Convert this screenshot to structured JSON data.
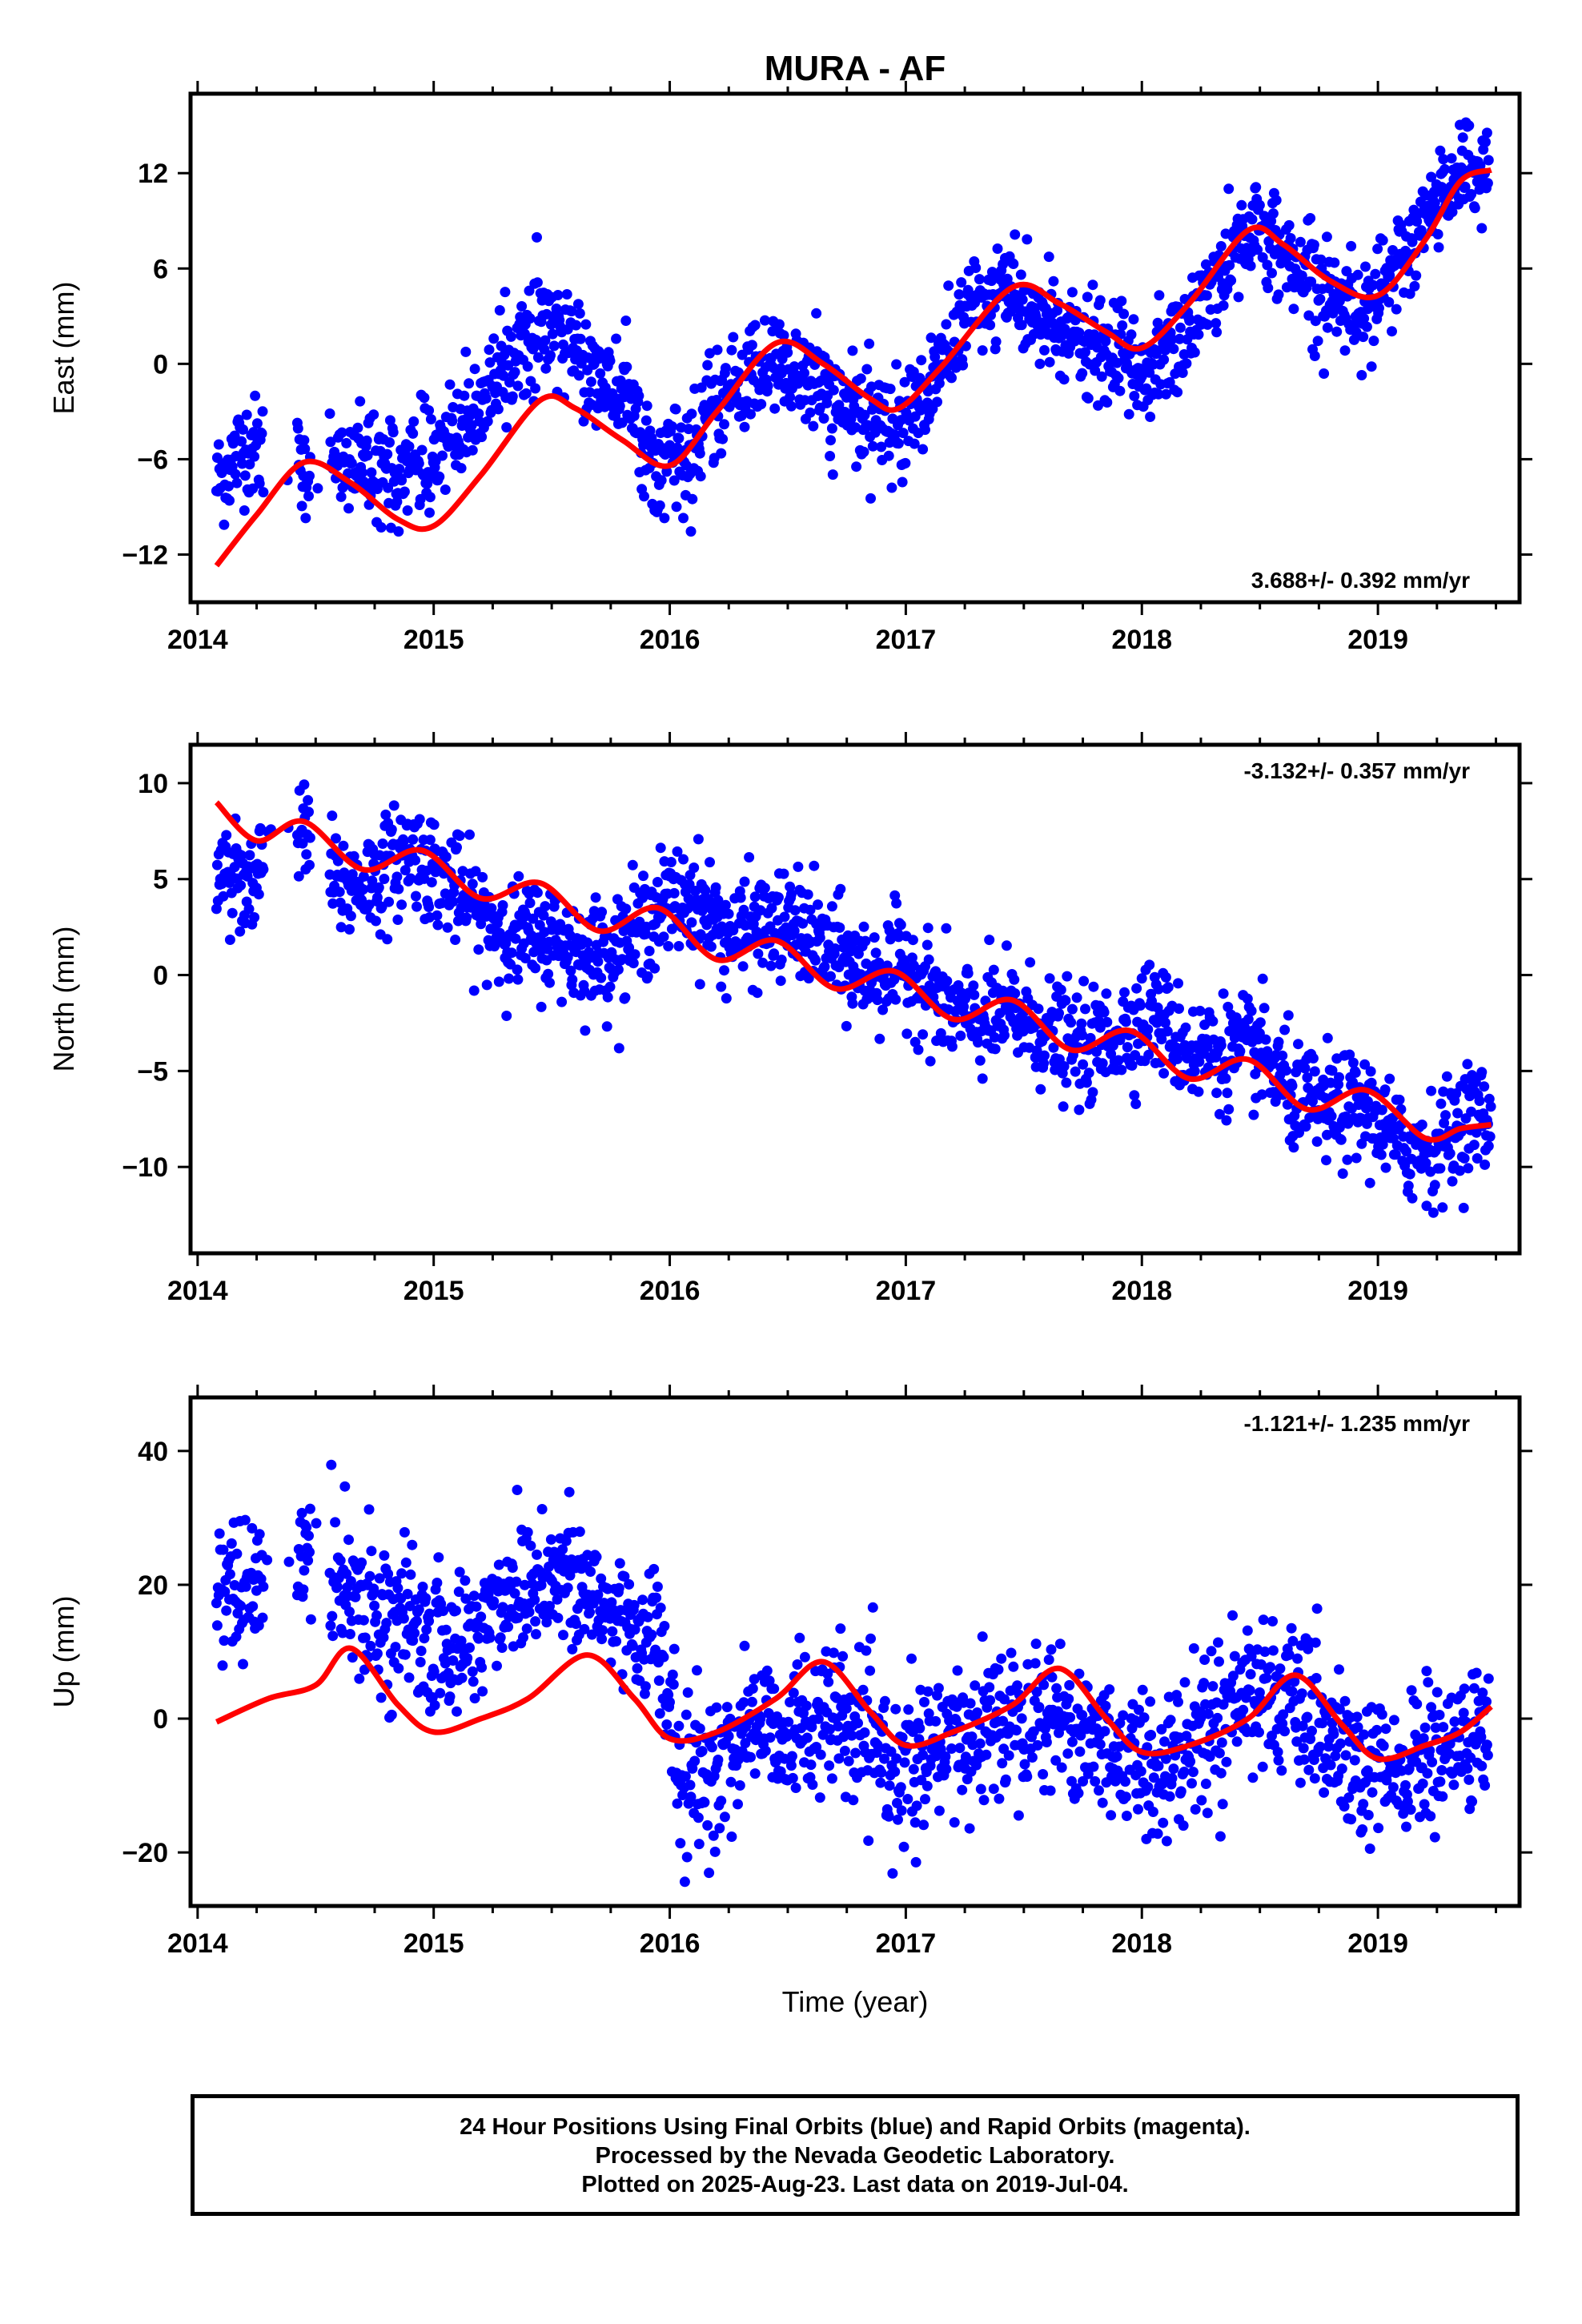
{
  "title": "MURA - AF",
  "xlabel": "Time (year)",
  "footer": {
    "line1": "24 Hour Positions Using Final Orbits (blue) and Rapid Orbits (magenta).",
    "line2": "Processed by the Nevada Geodetic Laboratory.",
    "line3": "Plotted on 2025-Aug-23. Last data on 2019-Jul-04."
  },
  "colors": {
    "points": "#0000ff",
    "fit": "#ff0000",
    "frame": "#000000"
  },
  "chart_data": [
    {
      "type": "scatter",
      "ylabel": "East (mm)",
      "rate": "3.688+/- 0.392 mm/yr",
      "rate_placement": "bottom-right",
      "xlim": [
        2013.97,
        2019.6
      ],
      "ylim": [
        -15,
        17
      ],
      "xticks": [
        2014,
        2015,
        2016,
        2017,
        2018,
        2019
      ],
      "yticks": [
        -12,
        -6,
        0,
        6,
        12
      ],
      "grid": false,
      "series": [
        {
          "kind": "points",
          "x": [
            2014.08,
            2014.2,
            2014.45,
            2014.6,
            2014.75,
            2014.9,
            2015.05,
            2015.2,
            2015.35,
            2015.5,
            2015.65,
            2015.8,
            2015.95,
            2016.05,
            2016.2,
            2016.35,
            2016.5,
            2016.65,
            2016.8,
            2016.95,
            2017.1,
            2017.25,
            2017.4,
            2017.55,
            2017.7,
            2017.85,
            2018.0,
            2018.15,
            2018.3,
            2018.45,
            2018.6,
            2018.75,
            2018.9,
            2019.05,
            2019.2,
            2019.35,
            2019.47
          ],
          "y": [
            -7.5,
            -5,
            -6.5,
            -6,
            -7,
            -6.5,
            -5,
            -3,
            1,
            2.5,
            0,
            -2,
            -6.5,
            -6,
            -3,
            -0.5,
            0,
            -2,
            -3.5,
            -4,
            -1.5,
            3,
            4.5,
            3,
            1.5,
            0.5,
            -0.5,
            1,
            5,
            8.5,
            7,
            5,
            3.5,
            5,
            9,
            12.5,
            12
          ]
        },
        {
          "kind": "fit",
          "x": [
            2014.08,
            2014.25,
            2014.45,
            2014.65,
            2014.85,
            2015.0,
            2015.2,
            2015.45,
            2015.6,
            2015.8,
            2016.0,
            2016.2,
            2016.45,
            2016.65,
            2016.85,
            2016.97,
            2017.15,
            2017.45,
            2017.65,
            2017.85,
            2018.0,
            2018.2,
            2018.45,
            2018.6,
            2018.8,
            2019.0,
            2019.2,
            2019.35,
            2019.48
          ],
          "y": [
            -12.7,
            -9.5,
            -6.2,
            -7.5,
            -9.8,
            -10.2,
            -7,
            -2.3,
            -2.8,
            -4.8,
            -6.4,
            -3,
            1.3,
            0,
            -2.2,
            -2.8,
            -0.2,
            4.8,
            3.8,
            2,
            1,
            3.8,
            8.4,
            7.5,
            5.2,
            4.3,
            7.8,
            11.5,
            12.2
          ]
        }
      ]
    },
    {
      "type": "scatter",
      "ylabel": "North (mm)",
      "rate": "-3.132+/- 0.357 mm/yr",
      "rate_placement": "top-right",
      "xlim": [
        2013.97,
        2019.6
      ],
      "ylim": [
        -14.5,
        12
      ],
      "xticks": [
        2014,
        2015,
        2016,
        2017,
        2018,
        2019
      ],
      "yticks": [
        -10,
        -5,
        0,
        5,
        10
      ],
      "grid": false,
      "series": [
        {
          "kind": "points",
          "x": [
            2014.08,
            2014.2,
            2014.45,
            2014.6,
            2014.75,
            2014.9,
            2015.05,
            2015.2,
            2015.35,
            2015.5,
            2015.65,
            2015.8,
            2015.95,
            2016.1,
            2016.25,
            2016.4,
            2016.55,
            2016.7,
            2016.85,
            2017.0,
            2017.15,
            2017.3,
            2017.45,
            2017.6,
            2017.75,
            2017.9,
            2018.05,
            2018.2,
            2018.35,
            2018.5,
            2018.65,
            2018.8,
            2018.95,
            2019.1,
            2019.25,
            2019.4,
            2019.48
          ],
          "y": [
            5.5,
            5,
            7.5,
            4.5,
            5,
            6.5,
            5,
            3,
            2,
            2,
            1,
            1.5,
            3.5,
            4,
            2,
            2.5,
            2.5,
            1,
            0,
            0.5,
            -1.5,
            -2.5,
            -2,
            -3,
            -4,
            -3,
            -2,
            -4,
            -4,
            -4,
            -6.5,
            -7,
            -7,
            -9,
            -9,
            -7,
            -8
          ]
        },
        {
          "kind": "fit",
          "x": [
            2014.08,
            2014.25,
            2014.45,
            2014.7,
            2014.95,
            2015.2,
            2015.45,
            2015.7,
            2015.95,
            2016.2,
            2016.45,
            2016.7,
            2016.95,
            2017.2,
            2017.45,
            2017.7,
            2017.95,
            2018.2,
            2018.45,
            2018.7,
            2018.95,
            2019.2,
            2019.35,
            2019.48
          ],
          "y": [
            9,
            7,
            8,
            5.5,
            6.5,
            4,
            4.8,
            2.3,
            3.5,
            0.8,
            1.8,
            -0.7,
            0.2,
            -2.3,
            -1.3,
            -3.9,
            -2.9,
            -5.4,
            -4.4,
            -7,
            -6,
            -8.5,
            -8,
            -7.8
          ]
        }
      ]
    },
    {
      "type": "scatter",
      "ylabel": "Up (mm)",
      "rate": "-1.121+/- 1.235 mm/yr",
      "rate_placement": "top-right",
      "xlim": [
        2013.97,
        2019.6
      ],
      "ylim": [
        -28,
        48
      ],
      "xticks": [
        2014,
        2015,
        2016,
        2017,
        2018,
        2019
      ],
      "yticks": [
        -20,
        0,
        20,
        40
      ],
      "grid": false,
      "series": [
        {
          "kind": "points",
          "x": [
            2014.08,
            2014.2,
            2014.5,
            2014.65,
            2014.8,
            2014.95,
            2015.1,
            2015.35,
            2015.5,
            2015.65,
            2015.8,
            2015.95,
            2016.05,
            2016.2,
            2016.35,
            2016.5,
            2016.65,
            2016.8,
            2016.95,
            2017.1,
            2017.25,
            2017.4,
            2017.55,
            2017.7,
            2017.85,
            2018.0,
            2018.15,
            2018.3,
            2018.45,
            2018.6,
            2018.75,
            2018.9,
            2019.05,
            2019.2,
            2019.35,
            2019.47
          ],
          "y": [
            22,
            18,
            25,
            20,
            15,
            12,
            10,
            20,
            22,
            18,
            15,
            12,
            -10,
            -8,
            0,
            -2,
            0,
            -2,
            -8,
            -6,
            -3,
            0,
            2,
            -1,
            -4,
            -7,
            -6,
            0,
            5,
            3,
            -2,
            -8,
            -9,
            -6,
            -4,
            -2
          ]
        },
        {
          "kind": "fit",
          "x": [
            2014.08,
            2014.3,
            2014.5,
            2014.65,
            2014.85,
            2015.0,
            2015.2,
            2015.4,
            2015.65,
            2015.85,
            2016.0,
            2016.2,
            2016.45,
            2016.65,
            2016.85,
            2017.0,
            2017.2,
            2017.45,
            2017.65,
            2017.85,
            2018.0,
            2018.2,
            2018.45,
            2018.65,
            2018.85,
            2019.0,
            2019.2,
            2019.35,
            2019.48
          ],
          "y": [
            -0.5,
            3,
            5,
            10.5,
            2,
            -2,
            0,
            3,
            9.5,
            3,
            -3,
            -2,
            3,
            8.5,
            1,
            -4,
            -2,
            2,
            7.5,
            0,
            -5,
            -4,
            0,
            6.5,
            -1,
            -6,
            -4,
            -2,
            1.8
          ]
        }
      ]
    }
  ]
}
